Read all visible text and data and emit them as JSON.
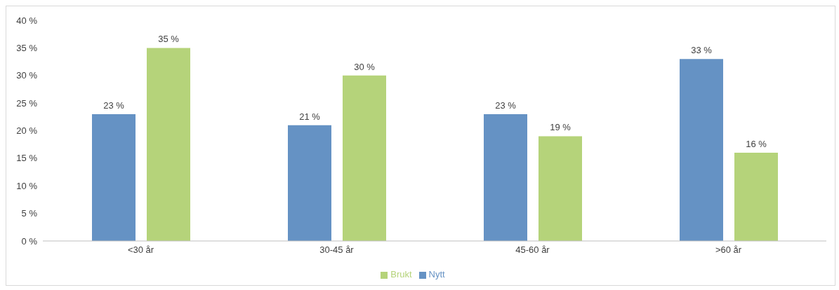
{
  "chart_data": {
    "type": "bar",
    "categories": [
      "<30 år",
      "30-45 år",
      "45-60 år",
      ">60 år"
    ],
    "series": [
      {
        "name": "Nytt",
        "color": "#6592c4",
        "values": [
          23,
          21,
          23,
          33
        ],
        "value_labels": [
          "23 %",
          "21 %",
          "23 %",
          "33 %"
        ]
      },
      {
        "name": "Brukt",
        "color": "#b5d37a",
        "values": [
          35,
          30,
          19,
          16
        ],
        "value_labels": [
          "35 %",
          "30 %",
          "19 %",
          "16 %"
        ]
      }
    ],
    "ylim": [
      0,
      40
    ],
    "yticks": [
      {
        "value": 0,
        "label": "0 %"
      },
      {
        "value": 5,
        "label": "5 %"
      },
      {
        "value": 10,
        "label": "10 %"
      },
      {
        "value": 15,
        "label": "15 %"
      },
      {
        "value": 20,
        "label": "20 %"
      },
      {
        "value": 25,
        "label": "25 %"
      },
      {
        "value": 30,
        "label": "30 %"
      },
      {
        "value": 35,
        "label": "35 %"
      },
      {
        "value": 40,
        "label": "40 %"
      }
    ],
    "legend": "bottom"
  }
}
